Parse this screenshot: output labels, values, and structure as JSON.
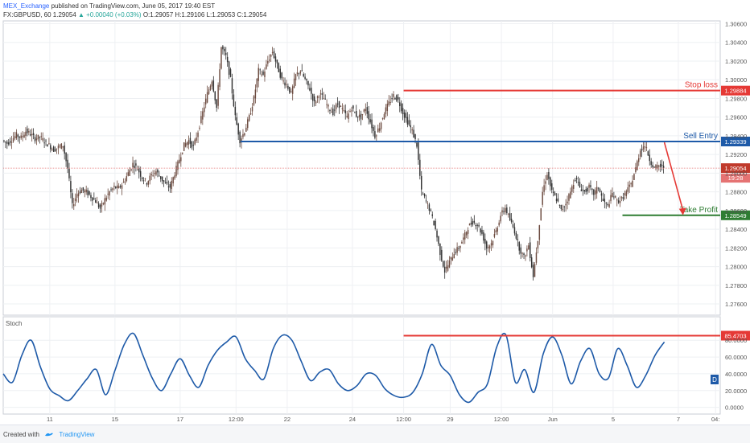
{
  "header": {
    "publisher": "MEX_Exchange",
    "published_text": "published on TradingView.com, June 05, 2017 19:40 EST",
    "symbol_line": "FX:GBPUSD, 60  1.29054",
    "change": "▲ +0.00040 (+0.03%)",
    "ohlc": "O:1.29057 H:1.29106 L:1.29053 C:1.29054"
  },
  "footer": {
    "created_with": "Created with",
    "brand": "TradingView"
  },
  "indicator": {
    "name": "Stoch",
    "badge": "D"
  },
  "chart_data": [
    {
      "type": "candlestick",
      "symbol": "FX:GBPUSD",
      "interval": "60",
      "ylim": [
        1.2748,
        1.3063
      ],
      "yticks": [
        "1.30600",
        "1.30400",
        "1.30200",
        "1.30000",
        "1.29800",
        "1.29600",
        "1.29400",
        "1.29200",
        "1.29000",
        "1.28800",
        "1.28600",
        "1.28400",
        "1.28200",
        "1.28000",
        "1.27800",
        "1.27600"
      ],
      "ytick_values": [
        1.306,
        1.304,
        1.302,
        1.3,
        1.298,
        1.296,
        1.294,
        1.292,
        1.29,
        1.288,
        1.286,
        1.284,
        1.282,
        1.28,
        1.278,
        1.276
      ],
      "xticks": [
        "11",
        "15",
        "17",
        "12:00",
        "22",
        "24",
        "12:00",
        "29",
        "12:00",
        "Jun",
        "5",
        "7",
        "04:"
      ],
      "xtick_values": [
        10,
        24,
        38,
        50,
        61,
        75,
        86,
        96,
        107,
        118,
        131,
        145,
        153
      ],
      "xlim": [
        0,
        154
      ],
      "price_path": [
        [
          0,
          1.2935
        ],
        [
          1,
          1.2932
        ],
        [
          2,
          1.2936
        ],
        [
          3,
          1.2941
        ],
        [
          4,
          1.2938
        ],
        [
          5,
          1.2945
        ],
        [
          6,
          1.2942
        ],
        [
          7,
          1.2937
        ],
        [
          8,
          1.2939
        ],
        [
          9,
          1.2934
        ],
        [
          10,
          1.293
        ],
        [
          11,
          1.2925
        ],
        [
          12,
          1.2928
        ],
        [
          13,
          1.293
        ],
        [
          14,
          1.2905
        ],
        [
          15,
          1.2865
        ],
        [
          16,
          1.2878
        ],
        [
          17,
          1.2882
        ],
        [
          18,
          1.288
        ],
        [
          19,
          1.2875
        ],
        [
          20,
          1.287
        ],
        [
          21,
          1.2862
        ],
        [
          22,
          1.2872
        ],
        [
          23,
          1.288
        ],
        [
          24,
          1.2885
        ],
        [
          25,
          1.2884
        ],
        [
          26,
          1.289
        ],
        [
          27,
          1.29
        ],
        [
          28,
          1.291
        ],
        [
          29,
          1.2905
        ],
        [
          30,
          1.2895
        ],
        [
          31,
          1.289
        ],
        [
          32,
          1.2898
        ],
        [
          33,
          1.2902
        ],
        [
          34,
          1.2895
        ],
        [
          35,
          1.2888
        ],
        [
          36,
          1.2885
        ],
        [
          37,
          1.29
        ],
        [
          38,
          1.2915
        ],
        [
          39,
          1.293
        ],
        [
          40,
          1.2935
        ],
        [
          41,
          1.2928
        ],
        [
          42,
          1.2945
        ],
        [
          43,
          1.2965
        ],
        [
          44,
          1.2985
        ],
        [
          45,
          1.3
        ],
        [
          46,
          1.297
        ],
        [
          47,
          1.3035
        ],
        [
          48,
          1.3025
        ],
        [
          49,
          1.3
        ],
        [
          50,
          1.296
        ],
        [
          51,
          1.2935
        ],
        [
          52,
          1.2945
        ],
        [
          53,
          1.296
        ],
        [
          54,
          1.298
        ],
        [
          55,
          1.301
        ],
        [
          56,
          1.3005
        ],
        [
          57,
          1.302
        ],
        [
          58,
          1.303
        ],
        [
          59,
          1.3015
        ],
        [
          60,
          1.3
        ],
        [
          61,
          1.2995
        ],
        [
          62,
          1.2985
        ],
        [
          63,
          1.3005
        ],
        [
          64,
          1.301
        ],
        [
          65,
          1.3
        ],
        [
          66,
          1.299
        ],
        [
          67,
          1.2975
        ],
        [
          68,
          1.2985
        ],
        [
          69,
          1.298
        ],
        [
          70,
          1.297
        ],
        [
          71,
          1.2965
        ],
        [
          72,
          1.2975
        ],
        [
          73,
          1.2968
        ],
        [
          74,
          1.296
        ],
        [
          75,
          1.297
        ],
        [
          76,
          1.2962
        ],
        [
          77,
          1.296
        ],
        [
          78,
          1.297
        ],
        [
          79,
          1.2955
        ],
        [
          80,
          1.294
        ],
        [
          81,
          1.295
        ],
        [
          82,
          1.2965
        ],
        [
          83,
          1.2975
        ],
        [
          84,
          1.2983
        ],
        [
          85,
          1.2978
        ],
        [
          86,
          1.2965
        ],
        [
          87,
          1.2955
        ],
        [
          88,
          1.2945
        ],
        [
          89,
          1.293
        ],
        [
          90,
          1.288
        ],
        [
          91,
          1.287
        ],
        [
          92,
          1.2858
        ],
        [
          93,
          1.284
        ],
        [
          94,
          1.2815
        ],
        [
          95,
          1.2795
        ],
        [
          96,
          1.2805
        ],
        [
          97,
          1.2815
        ],
        [
          98,
          1.282
        ],
        [
          99,
          1.283
        ],
        [
          100,
          1.2842
        ],
        [
          101,
          1.2848
        ],
        [
          102,
          1.2845
        ],
        [
          103,
          1.2835
        ],
        [
          104,
          1.282
        ],
        [
          105,
          1.2825
        ],
        [
          106,
          1.2838
        ],
        [
          107,
          1.2855
        ],
        [
          108,
          1.2863
        ],
        [
          109,
          1.285
        ],
        [
          110,
          1.2838
        ],
        [
          111,
          1.282
        ],
        [
          112,
          1.281
        ],
        [
          113,
          1.2823
        ],
        [
          114,
          1.279
        ],
        [
          115,
          1.283
        ],
        [
          116,
          1.288
        ],
        [
          117,
          1.29
        ],
        [
          118,
          1.288
        ],
        [
          119,
          1.2872
        ],
        [
          120,
          1.286
        ],
        [
          121,
          1.2868
        ],
        [
          122,
          1.288
        ],
        [
          123,
          1.2895
        ],
        [
          124,
          1.2885
        ],
        [
          125,
          1.288
        ],
        [
          126,
          1.2885
        ],
        [
          127,
          1.2878
        ],
        [
          128,
          1.2885
        ],
        [
          129,
          1.287
        ],
        [
          130,
          1.2865
        ],
        [
          131,
          1.2878
        ],
        [
          132,
          1.287
        ],
        [
          133,
          1.2872
        ],
        [
          134,
          1.288
        ],
        [
          135,
          1.2888
        ],
        [
          136,
          1.2905
        ],
        [
          137,
          1.2925
        ],
        [
          138,
          1.293
        ],
        [
          139,
          1.2915
        ],
        [
          140,
          1.2905
        ],
        [
          141,
          1.2908
        ],
        [
          142,
          1.29054
        ]
      ],
      "levels": [
        {
          "label": "Stop loss",
          "price": 1.29884,
          "price_label": "1.29884",
          "color": "#e53935",
          "x_start": 86
        },
        {
          "label": "Sell Entry",
          "price": 1.29339,
          "price_label": "1.29339",
          "color": "#1e5aa8",
          "x_start": 51
        },
        {
          "label": "Take Profit",
          "price": 1.28549,
          "price_label": "1.28549",
          "color": "#2e7d32",
          "x_start": 133
        }
      ],
      "current_price": {
        "price": 1.29054,
        "label": "1.29054",
        "countdown": "19:28",
        "color": "#e57373"
      },
      "arrow": {
        "from": [
          142,
          1.2933
        ],
        "to": [
          146,
          1.2855
        ],
        "color": "#e53935"
      },
      "up_color": "#6d4c41",
      "down_color": "#333333"
    },
    {
      "type": "line",
      "name": "Stoch",
      "ylim": [
        0,
        100
      ],
      "yticks": [
        "80.0000",
        "60.0000",
        "40.0000",
        "20.0000",
        "0.0000"
      ],
      "ytick_values": [
        80,
        60,
        40,
        20,
        0
      ],
      "x": [
        0,
        2,
        4,
        6,
        8,
        10,
        12,
        14,
        16,
        18,
        20,
        22,
        24,
        26,
        28,
        30,
        32,
        34,
        36,
        38,
        40,
        42,
        44,
        46,
        48,
        50,
        52,
        54,
        56,
        58,
        60,
        62,
        64,
        66,
        68,
        70,
        72,
        74,
        76,
        78,
        80,
        82,
        84,
        86,
        88,
        90,
        92,
        94,
        96,
        98,
        100,
        102,
        104,
        106,
        108,
        110,
        112,
        114,
        116,
        118,
        120,
        122,
        124,
        126,
        128,
        130,
        132,
        134,
        136,
        138,
        140,
        142
      ],
      "values": [
        40,
        30,
        62,
        80,
        48,
        22,
        14,
        8,
        20,
        34,
        45,
        15,
        44,
        75,
        88,
        62,
        35,
        20,
        40,
        58,
        38,
        24,
        50,
        68,
        78,
        84,
        58,
        44,
        34,
        70,
        86,
        80,
        55,
        32,
        42,
        45,
        28,
        20,
        26,
        40,
        38,
        22,
        14,
        12,
        18,
        40,
        75,
        50,
        38,
        15,
        6,
        18,
        28,
        72,
        86,
        30,
        45,
        18,
        64,
        84,
        62,
        28,
        55,
        70,
        40,
        35,
        70,
        50,
        24,
        38,
        62,
        78
      ],
      "level": {
        "value": 85.4703,
        "label": "85.4703",
        "color": "#e53935",
        "x_start": 86
      },
      "line_color": "#1e5aa8"
    }
  ]
}
